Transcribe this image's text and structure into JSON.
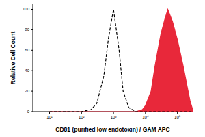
{
  "chart_data": {
    "type": "line",
    "x_label": "CD81 (purified low endotoxin) / GAM APC",
    "y_label": "Relative Cell Count",
    "log": "x",
    "x": [
      10,
      20,
      50,
      100,
      200,
      300,
      500,
      700,
      1000,
      1500,
      2000,
      3000,
      5000,
      8000,
      10000,
      15000,
      20000,
      30000,
      40000,
      50000,
      70000,
      100000,
      150000,
      200000,
      250000,
      300000
    ],
    "series": [
      {
        "color": "#000000",
        "line_style": "dashed",
        "type": "line",
        "values": [
          0,
          0,
          0,
          0,
          2,
          8,
          35,
          72,
          100,
          60,
          20,
          4,
          0,
          0,
          0,
          0,
          0,
          0,
          0,
          0,
          0,
          0,
          0,
          0,
          0,
          0
        ]
      },
      {
        "color": "#e8283a",
        "line_style": "solid",
        "type": "area",
        "values": [
          0,
          0,
          0,
          0,
          0,
          0,
          0,
          0,
          0,
          0,
          0,
          0,
          0,
          2,
          6,
          20,
          45,
          75,
          90,
          100,
          88,
          70,
          45,
          25,
          10,
          2
        ]
      }
    ],
    "xlim": [
      3,
      300000
    ],
    "xticks": [
      {
        "value": 10,
        "label": "10¹"
      },
      {
        "value": 100,
        "label": "10²"
      },
      {
        "value": 1000,
        "label": "10³"
      },
      {
        "value": 10000,
        "label": "10⁴"
      },
      {
        "value": 100000,
        "label": "10⁵"
      }
    ],
    "ylim": [
      0,
      105
    ],
    "yticks": [
      0,
      20,
      40,
      60,
      80,
      100
    ],
    "grid": false
  }
}
